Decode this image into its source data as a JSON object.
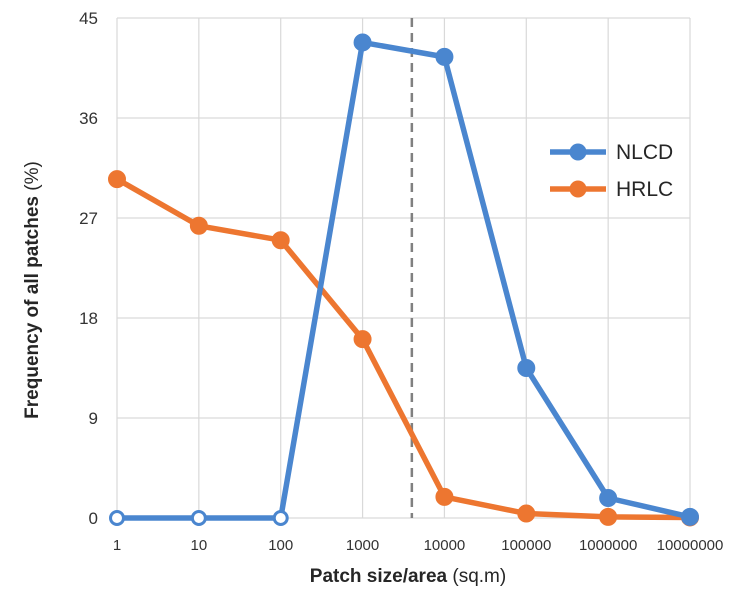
{
  "chart_data": {
    "type": "line",
    "categories": [
      "1",
      "10",
      "100",
      "1000",
      "10000",
      "100000",
      "1000000",
      "10000000"
    ],
    "x": [
      1,
      10,
      100,
      1000,
      10000,
      100000,
      1000000,
      10000000
    ],
    "xscale": "log",
    "xlabel_bold": "Patch size/area",
    "xlabel_unit": " (sq.m)",
    "ylabel_bold": "Frequency of all patches",
    "ylabel_unit": " (%)",
    "ylim": [
      0,
      45
    ],
    "yticks": [
      "0",
      "9",
      "18",
      "27",
      "36",
      "45"
    ],
    "grid": true,
    "legend_position": "right",
    "reference_line": {
      "x": 4000,
      "style": "dashed",
      "color": "#808080"
    },
    "series": [
      {
        "name": "NLCD",
        "color": "#4a86cf",
        "values": [
          0,
          0,
          0,
          42.8,
          41.5,
          13.5,
          1.8,
          0.1
        ],
        "hollow_markers": [
          0,
          1,
          2
        ]
      },
      {
        "name": "HRLC",
        "color": "#ed7630",
        "values": [
          30.5,
          26.3,
          25.0,
          16.1,
          1.9,
          0.4,
          0.1,
          0.05
        ],
        "hollow_markers": []
      }
    ]
  }
}
